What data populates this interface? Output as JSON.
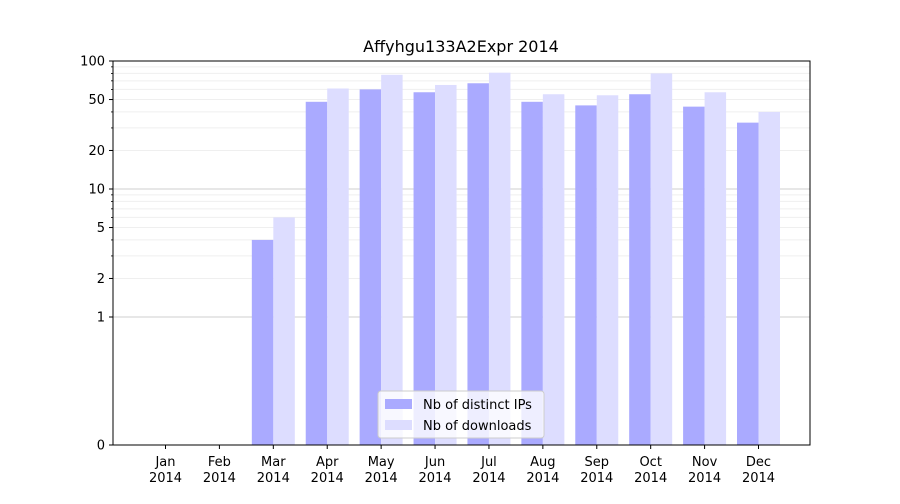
{
  "chart_data": {
    "type": "bar",
    "title": "Affyhgu133A2Expr 2014",
    "xlabel": "",
    "ylabel": "",
    "categories": [
      [
        "Jan",
        "2014"
      ],
      [
        "Feb",
        "2014"
      ],
      [
        "Mar",
        "2014"
      ],
      [
        "Apr",
        "2014"
      ],
      [
        "May",
        "2014"
      ],
      [
        "Jun",
        "2014"
      ],
      [
        "Jul",
        "2014"
      ],
      [
        "Aug",
        "2014"
      ],
      [
        "Sep",
        "2014"
      ],
      [
        "Oct",
        "2014"
      ],
      [
        "Nov",
        "2014"
      ],
      [
        "Dec",
        "2014"
      ]
    ],
    "series": [
      {
        "name": "Nb of distinct IPs",
        "color": "#aaaaff",
        "values": [
          0,
          0,
          4,
          48,
          60,
          57,
          67,
          48,
          45,
          55,
          44,
          33
        ]
      },
      {
        "name": "Nb of downloads",
        "color": "#ddddff",
        "values": [
          0,
          0,
          6,
          61,
          78,
          65,
          81,
          55,
          54,
          80,
          57,
          40
        ]
      }
    ],
    "y_scale": "symlog",
    "ylim": [
      0,
      100
    ],
    "yticks": [
      {
        "value": 0,
        "label": "0"
      },
      {
        "value": 1,
        "label": "1"
      },
      {
        "value": 2,
        "label": "2"
      },
      {
        "value": 5,
        "label": "5"
      },
      {
        "value": 10,
        "label": "10"
      },
      {
        "value": 20,
        "label": "20"
      },
      {
        "value": 50,
        "label": "50"
      },
      {
        "value": 100,
        "label": "100"
      }
    ],
    "grid": true,
    "legend_position": "bottom-center"
  }
}
